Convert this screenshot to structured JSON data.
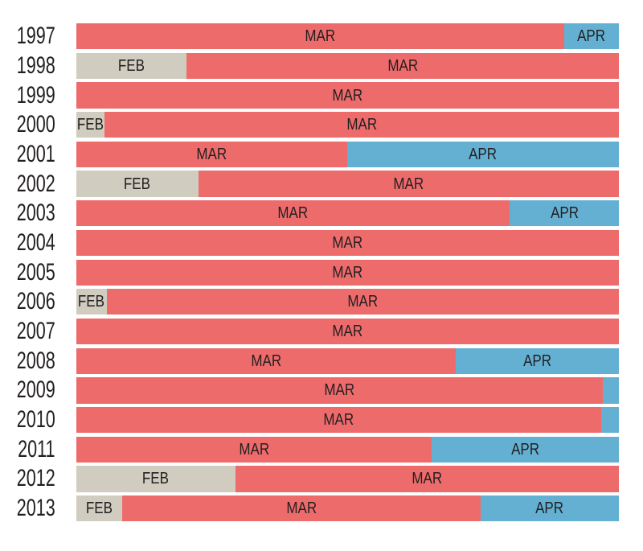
{
  "chart_data": {
    "type": "bar",
    "subtype": "horizontal-stacked-month-timeline",
    "title": "",
    "xlabel": "",
    "ylabel": "",
    "legend_position": "none",
    "grid": false,
    "categories": [
      "1997",
      "1998",
      "1999",
      "2000",
      "2001",
      "2002",
      "2003",
      "2004",
      "2005",
      "2006",
      "2007",
      "2008",
      "2009",
      "2010",
      "2011",
      "2012",
      "2013"
    ],
    "palette": {
      "FEB": "#d0ccbf",
      "MAR": "#ee6b6c",
      "APR": "#64b0d2"
    },
    "text_color": "#231f20",
    "background_color": "#ffffff",
    "rows": [
      {
        "year": "1997",
        "segments": [
          {
            "month": "MAR",
            "percent": 89.9,
            "show_label": true
          },
          {
            "month": "APR",
            "percent": 10.1,
            "show_label": true
          }
        ]
      },
      {
        "year": "1998",
        "segments": [
          {
            "month": "FEB",
            "percent": 20.3,
            "show_label": true
          },
          {
            "month": "MAR",
            "percent": 79.7,
            "show_label": true
          }
        ]
      },
      {
        "year": "1999",
        "segments": [
          {
            "month": "MAR",
            "percent": 100,
            "show_label": true
          }
        ]
      },
      {
        "year": "2000",
        "segments": [
          {
            "month": "FEB",
            "percent": 5.2,
            "show_label": true
          },
          {
            "month": "MAR",
            "percent": 94.8,
            "show_label": true
          }
        ]
      },
      {
        "year": "2001",
        "segments": [
          {
            "month": "MAR",
            "percent": 49.9,
            "show_label": true
          },
          {
            "month": "APR",
            "percent": 50.1,
            "show_label": true
          }
        ]
      },
      {
        "year": "2002",
        "segments": [
          {
            "month": "FEB",
            "percent": 22.5,
            "show_label": true
          },
          {
            "month": "MAR",
            "percent": 77.5,
            "show_label": true
          }
        ]
      },
      {
        "year": "2003",
        "segments": [
          {
            "month": "MAR",
            "percent": 79.9,
            "show_label": true
          },
          {
            "month": "APR",
            "percent": 20.1,
            "show_label": true
          }
        ]
      },
      {
        "year": "2004",
        "segments": [
          {
            "month": "MAR",
            "percent": 100,
            "show_label": true
          }
        ]
      },
      {
        "year": "2005",
        "segments": [
          {
            "month": "MAR",
            "percent": 100,
            "show_label": true
          }
        ]
      },
      {
        "year": "2006",
        "segments": [
          {
            "month": "FEB",
            "percent": 5.6,
            "show_label": true
          },
          {
            "month": "MAR",
            "percent": 94.4,
            "show_label": true
          }
        ]
      },
      {
        "year": "2007",
        "segments": [
          {
            "month": "MAR",
            "percent": 100,
            "show_label": true
          }
        ]
      },
      {
        "year": "2008",
        "segments": [
          {
            "month": "MAR",
            "percent": 69.9,
            "show_label": true
          },
          {
            "month": "APR",
            "percent": 30.1,
            "show_label": true
          }
        ]
      },
      {
        "year": "2009",
        "segments": [
          {
            "month": "MAR",
            "percent": 97.0,
            "show_label": true
          },
          {
            "month": "APR",
            "percent": 3.0,
            "show_label": false
          }
        ]
      },
      {
        "year": "2010",
        "segments": [
          {
            "month": "MAR",
            "percent": 96.7,
            "show_label": true
          },
          {
            "month": "APR",
            "percent": 3.3,
            "show_label": false
          }
        ]
      },
      {
        "year": "2011",
        "segments": [
          {
            "month": "MAR",
            "percent": 65.5,
            "show_label": true
          },
          {
            "month": "APR",
            "percent": 34.5,
            "show_label": true
          }
        ]
      },
      {
        "year": "2012",
        "segments": [
          {
            "month": "FEB",
            "percent": 29.3,
            "show_label": true
          },
          {
            "month": "MAR",
            "percent": 70.7,
            "show_label": true
          }
        ]
      },
      {
        "year": "2013",
        "segments": [
          {
            "month": "FEB",
            "percent": 8.4,
            "show_label": true
          },
          {
            "month": "MAR",
            "percent": 66.1,
            "show_label": true
          },
          {
            "month": "APR",
            "percent": 25.5,
            "show_label": true
          }
        ]
      }
    ]
  }
}
